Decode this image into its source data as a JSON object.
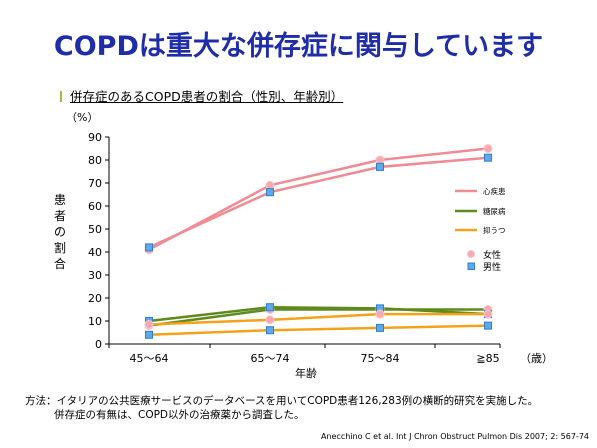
{
  "slide": {
    "title": "COPDは重大な併存症に関与しています",
    "subtitle": "併存症のあるCOPD患者の割合（性別、年齢別）",
    "method_line1": "方法：イタリアの公共医療サービスのデータベースを用いてCOPD患者126,283例の横断的研究を実施した。",
    "method_line2": "併存症の有無は、COPD以外の治療薬から調査した。",
    "citation": "Anecchino C et al. Int J Chron Obstruct Pulmon Dis 2007; 2: 567-74"
  },
  "chart_data": {
    "type": "line",
    "categories": [
      "45～64",
      "65～74",
      "75～84",
      "≧85"
    ],
    "x_unit": "（歳）",
    "xlabel": "年齢",
    "ylabel": "患者の割合",
    "y_unit": "（%）",
    "ylim": [
      0,
      90
    ],
    "yticks": [
      0,
      10,
      20,
      30,
      40,
      50,
      60,
      70,
      80,
      90
    ],
    "grid": false,
    "legend_position": "right",
    "conditions": [
      {
        "name": "心疾患",
        "color": "#f08a94"
      },
      {
        "name": "糖尿病",
        "color": "#5f8a1d"
      },
      {
        "name": "抑うつ",
        "color": "#f4a21c"
      }
    ],
    "sex_markers": [
      {
        "name": "女性",
        "marker": "circle",
        "color": "#f6aab0"
      },
      {
        "name": "男性",
        "marker": "square",
        "color": "#5ea9e8"
      }
    ],
    "series": [
      {
        "condition": "心疾患",
        "sex": "女性",
        "values": [
          41,
          69,
          80,
          85
        ]
      },
      {
        "condition": "心疾患",
        "sex": "男性",
        "values": [
          42,
          66,
          77,
          81
        ]
      },
      {
        "condition": "糖尿病",
        "sex": "女性",
        "values": [
          8,
          15,
          15,
          15
        ]
      },
      {
        "condition": "糖尿病",
        "sex": "男性",
        "values": [
          10,
          16,
          15.5,
          13
        ]
      },
      {
        "condition": "抑うつ",
        "sex": "女性",
        "values": [
          8.5,
          10.5,
          13,
          13
        ]
      },
      {
        "condition": "抑うつ",
        "sex": "男性",
        "values": [
          4,
          6,
          7,
          8
        ]
      }
    ]
  }
}
